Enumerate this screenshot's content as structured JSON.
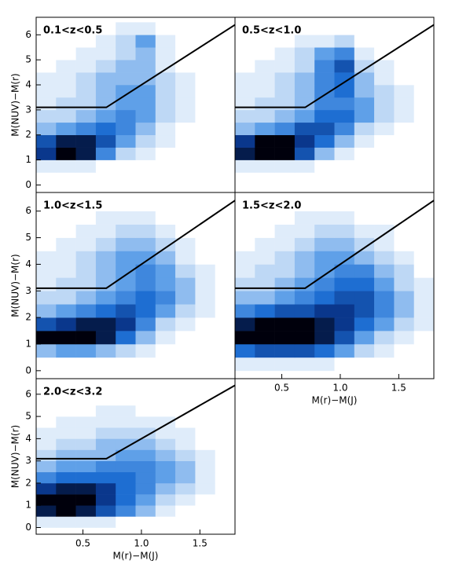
{
  "chart_data": [
    {
      "type": "heatmap",
      "title": "0.1<z<0.5",
      "ylabel": "M(NUV)−M(r)",
      "xlim": [
        0.1,
        1.8
      ],
      "ylim": [
        -0.3,
        6.7
      ],
      "yticks": [
        0,
        1,
        2,
        3,
        4,
        5,
        6
      ],
      "x_bins": [
        0.1,
        0.27,
        0.44,
        0.61,
        0.78,
        0.95,
        1.12,
        1.29,
        1.46,
        1.63,
        1.8
      ],
      "y_bins": [
        0,
        0.5,
        1,
        1.5,
        2,
        2.5,
        3,
        3.5,
        4,
        4.5,
        5,
        5.5,
        6,
        6.5
      ],
      "z": [
        [
          0,
          0,
          0,
          0,
          0,
          0,
          0,
          0,
          0,
          0
        ],
        [
          1,
          1,
          1,
          0,
          0,
          0,
          0,
          0,
          0,
          0
        ],
        [
          8,
          10,
          9,
          5,
          2,
          1,
          0,
          0,
          0,
          0
        ],
        [
          7,
          9,
          9,
          7,
          4,
          2,
          1,
          0,
          0,
          0
        ],
        [
          3,
          4,
          5,
          6,
          5,
          3,
          1,
          0,
          0,
          0
        ],
        [
          2,
          2,
          3,
          4,
          5,
          4,
          2,
          1,
          0,
          0
        ],
        [
          1,
          2,
          2,
          3,
          4,
          4,
          2,
          1,
          0,
          0
        ],
        [
          1,
          1,
          2,
          3,
          4,
          4,
          2,
          1,
          0,
          0
        ],
        [
          1,
          1,
          2,
          3,
          3,
          3,
          2,
          1,
          0,
          0
        ],
        [
          0,
          1,
          1,
          2,
          3,
          3,
          1,
          0,
          0,
          0
        ],
        [
          0,
          0,
          1,
          1,
          2,
          3,
          1,
          0,
          0,
          0
        ],
        [
          0,
          0,
          0,
          1,
          2,
          4,
          1,
          0,
          0,
          0
        ],
        [
          0,
          0,
          0,
          0,
          1,
          1,
          0,
          0,
          0,
          0
        ]
      ],
      "line": {
        "x": [
          0.1,
          0.7,
          1.8
        ],
        "y": [
          3.1,
          3.1,
          6.4
        ],
        "color": "#000000"
      }
    },
    {
      "type": "heatmap",
      "title": "0.5<z<1.0",
      "xlim": [
        0.1,
        1.8
      ],
      "ylim": [
        -0.3,
        6.7
      ],
      "x_bins": [
        0.1,
        0.27,
        0.44,
        0.61,
        0.78,
        0.95,
        1.12,
        1.29,
        1.46,
        1.63,
        1.8
      ],
      "y_bins": [
        0,
        0.5,
        1,
        1.5,
        2,
        2.5,
        3,
        3.5,
        4,
        4.5,
        5,
        5.5,
        6,
        6.5
      ],
      "z": [
        [
          0,
          0,
          0,
          0,
          0,
          0,
          0,
          0,
          0,
          0
        ],
        [
          1,
          1,
          1,
          1,
          0,
          0,
          0,
          0,
          0,
          0
        ],
        [
          9,
          10,
          10,
          7,
          3,
          1,
          0,
          0,
          0,
          0
        ],
        [
          8,
          10,
          10,
          8,
          6,
          3,
          1,
          0,
          0,
          0
        ],
        [
          3,
          4,
          5,
          7,
          7,
          5,
          2,
          1,
          0,
          0
        ],
        [
          2,
          2,
          3,
          4,
          6,
          6,
          4,
          2,
          1,
          0
        ],
        [
          1,
          2,
          2,
          3,
          5,
          5,
          4,
          2,
          1,
          0
        ],
        [
          1,
          1,
          2,
          3,
          5,
          6,
          3,
          2,
          1,
          0
        ],
        [
          1,
          1,
          2,
          3,
          5,
          6,
          3,
          1,
          0,
          0
        ],
        [
          0,
          1,
          1,
          2,
          5,
          7,
          2,
          1,
          0,
          0
        ],
        [
          0,
          0,
          1,
          2,
          4,
          5,
          1,
          0,
          0,
          0
        ],
        [
          0,
          0,
          0,
          1,
          1,
          2,
          0,
          0,
          0,
          0
        ],
        [
          0,
          0,
          0,
          0,
          0,
          0,
          0,
          0,
          0,
          0
        ]
      ],
      "line": {
        "x": [
          0.1,
          0.7,
          1.8
        ],
        "y": [
          3.1,
          3.1,
          6.4
        ],
        "color": "#000000"
      }
    },
    {
      "type": "heatmap",
      "title": "1.0<z<1.5",
      "ylabel": "M(NUV)−M(r)",
      "xlim": [
        0.1,
        1.8
      ],
      "ylim": [
        -0.3,
        6.7
      ],
      "yticks": [
        0,
        1,
        2,
        3,
        4,
        5,
        6
      ],
      "x_bins": [
        0.1,
        0.27,
        0.44,
        0.61,
        0.78,
        0.95,
        1.12,
        1.29,
        1.46,
        1.63,
        1.8
      ],
      "y_bins": [
        0,
        0.5,
        1,
        1.5,
        2,
        2.5,
        3,
        3.5,
        4,
        4.5,
        5,
        5.5,
        6,
        6.5
      ],
      "z": [
        [
          0,
          0,
          0,
          0,
          0,
          0,
          0,
          0,
          0,
          0
        ],
        [
          3,
          4,
          4,
          3,
          2,
          1,
          0,
          0,
          0,
          0
        ],
        [
          10,
          10,
          10,
          9,
          6,
          3,
          1,
          0,
          0,
          0
        ],
        [
          7,
          8,
          9,
          9,
          8,
          5,
          2,
          1,
          0,
          0
        ],
        [
          3,
          4,
          5,
          6,
          7,
          6,
          4,
          2,
          1,
          0
        ],
        [
          2,
          2,
          3,
          4,
          5,
          6,
          5,
          3,
          1,
          0
        ],
        [
          1,
          2,
          2,
          3,
          4,
          5,
          4,
          3,
          1,
          0
        ],
        [
          1,
          1,
          2,
          3,
          4,
          5,
          4,
          2,
          1,
          0
        ],
        [
          1,
          1,
          2,
          3,
          4,
          4,
          3,
          1,
          0,
          0
        ],
        [
          0,
          1,
          1,
          2,
          3,
          3,
          2,
          1,
          0,
          0
        ],
        [
          0,
          0,
          1,
          1,
          2,
          2,
          1,
          0,
          0,
          0
        ],
        [
          0,
          0,
          0,
          1,
          1,
          1,
          0,
          0,
          0,
          0
        ],
        [
          0,
          0,
          0,
          0,
          0,
          0,
          0,
          0,
          0,
          0
        ]
      ],
      "line": {
        "x": [
          0.1,
          0.7,
          1.8
        ],
        "y": [
          3.1,
          3.1,
          6.4
        ],
        "color": "#000000"
      }
    },
    {
      "type": "heatmap",
      "title": "1.5<z<2.0",
      "xlabel": "M(r)−M(J)",
      "xlim": [
        0.1,
        1.8
      ],
      "ylim": [
        -0.3,
        6.7
      ],
      "xticks": [
        0.5,
        {
          "value": 1,
          "label": "1.0"
        },
        1.5
      ],
      "x_bins": [
        0.1,
        0.27,
        0.44,
        0.61,
        0.78,
        0.95,
        1.12,
        1.29,
        1.46,
        1.63,
        1.8
      ],
      "y_bins": [
        0,
        0.5,
        1,
        1.5,
        2,
        2.5,
        3,
        3.5,
        4,
        4.5,
        5,
        5.5,
        6,
        6.5
      ],
      "z": [
        [
          1,
          1,
          1,
          1,
          1,
          0,
          0,
          0,
          0,
          0
        ],
        [
          6,
          7,
          7,
          7,
          6,
          4,
          2,
          1,
          0,
          0
        ],
        [
          10,
          10,
          10,
          10,
          9,
          7,
          4,
          2,
          1,
          0
        ],
        [
          9,
          10,
          10,
          10,
          9,
          8,
          6,
          4,
          2,
          1
        ],
        [
          5,
          6,
          7,
          7,
          8,
          8,
          7,
          5,
          3,
          1
        ],
        [
          3,
          3,
          4,
          5,
          6,
          7,
          7,
          5,
          3,
          1
        ],
        [
          2,
          2,
          3,
          4,
          5,
          6,
          6,
          4,
          2,
          1
        ],
        [
          1,
          2,
          2,
          3,
          4,
          5,
          5,
          3,
          2,
          0
        ],
        [
          1,
          1,
          2,
          3,
          4,
          4,
          3,
          2,
          1,
          0
        ],
        [
          0,
          1,
          1,
          2,
          3,
          3,
          2,
          1,
          0,
          0
        ],
        [
          0,
          0,
          1,
          1,
          2,
          2,
          1,
          1,
          0,
          0
        ],
        [
          0,
          0,
          0,
          1,
          1,
          1,
          0,
          0,
          0,
          0
        ],
        [
          0,
          0,
          0,
          0,
          0,
          0,
          0,
          0,
          0,
          0
        ]
      ],
      "line": {
        "x": [
          0.1,
          0.7,
          1.8
        ],
        "y": [
          3.1,
          3.1,
          6.4
        ],
        "color": "#000000"
      }
    },
    {
      "type": "heatmap",
      "title": "2.0<z<3.2",
      "ylabel": "M(NUV)−M(r)",
      "xlabel": "M(r)−M(J)",
      "xlim": [
        0.1,
        1.8
      ],
      "ylim": [
        -0.3,
        6.7
      ],
      "xticks": [
        0.5,
        {
          "value": 1,
          "label": "1.0"
        },
        1.5
      ],
      "yticks": [
        0,
        1,
        2,
        3,
        4,
        5,
        6
      ],
      "x_bins": [
        0.1,
        0.27,
        0.44,
        0.61,
        0.78,
        0.95,
        1.12,
        1.29,
        1.46,
        1.63,
        1.8
      ],
      "y_bins": [
        0,
        0.5,
        1,
        1.5,
        2,
        2.5,
        3,
        3.5,
        4,
        4.5,
        5,
        5.5,
        6,
        6.5
      ],
      "z": [
        [
          1,
          1,
          1,
          1,
          0,
          0,
          0,
          0,
          0,
          0
        ],
        [
          9,
          10,
          9,
          7,
          5,
          3,
          1,
          0,
          0,
          0
        ],
        [
          10,
          10,
          10,
          8,
          6,
          4,
          2,
          1,
          0,
          0
        ],
        [
          8,
          9,
          9,
          8,
          6,
          5,
          3,
          2,
          1,
          0
        ],
        [
          5,
          6,
          6,
          6,
          6,
          5,
          4,
          3,
          1,
          0
        ],
        [
          3,
          4,
          4,
          5,
          5,
          5,
          4,
          3,
          1,
          0
        ],
        [
          2,
          3,
          3,
          3,
          4,
          4,
          3,
          2,
          1,
          0
        ],
        [
          1,
          2,
          2,
          3,
          3,
          3,
          2,
          1,
          0,
          0
        ],
        [
          1,
          1,
          1,
          2,
          2,
          2,
          1,
          1,
          0,
          0
        ],
        [
          0,
          1,
          1,
          1,
          1,
          1,
          1,
          0,
          0,
          0
        ],
        [
          0,
          0,
          0,
          1,
          1,
          0,
          0,
          0,
          0,
          0
        ],
        [
          0,
          0,
          0,
          0,
          0,
          0,
          0,
          0,
          0,
          0
        ],
        [
          0,
          0,
          0,
          0,
          0,
          0,
          0,
          0,
          0,
          0
        ]
      ],
      "line": {
        "x": [
          0.1,
          0.7,
          1.8
        ],
        "y": [
          3.1,
          3.1,
          6.4
        ],
        "color": "#000000"
      }
    }
  ]
}
